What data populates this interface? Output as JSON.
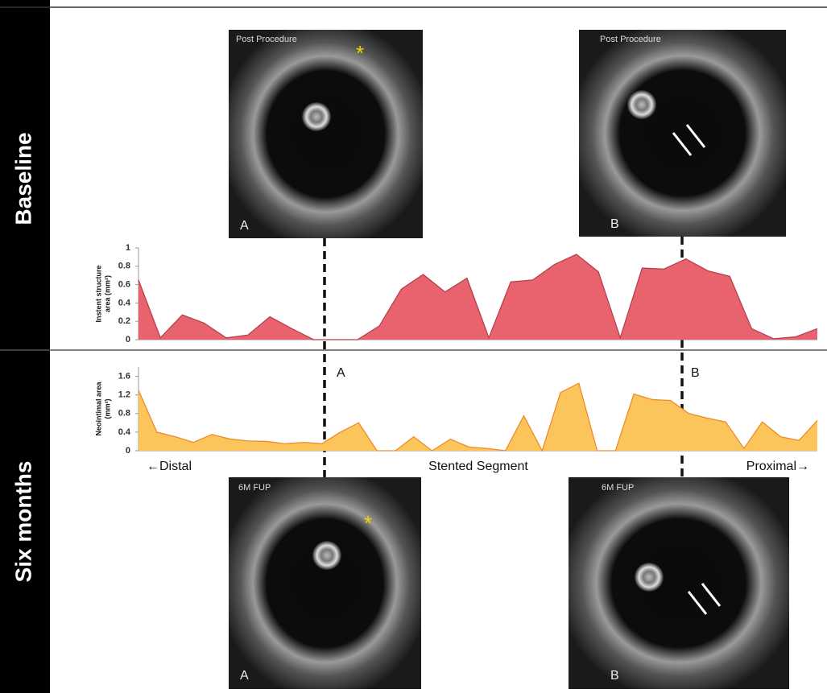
{
  "sections": [
    "Baseline",
    "Six months"
  ],
  "images": [
    {
      "caption": "Post Procedure",
      "letter": "A",
      "marker": "*"
    },
    {
      "caption": "Post Procedure",
      "letter": "B"
    },
    {
      "caption": "6M FUP",
      "letter": "A",
      "marker": "*"
    },
    {
      "caption": "6M FUP",
      "letter": "B"
    }
  ],
  "cut_labels": [
    "A",
    "B"
  ],
  "chart_data": [
    {
      "type": "area",
      "ylabel": [
        "Instent structure",
        "area (mm²)"
      ],
      "color": "#e8636d",
      "edge": "#b5404c",
      "values": [
        0.65,
        0.02,
        0.27,
        0.18,
        0.02,
        0.05,
        0.25,
        0.12,
        0,
        0,
        0,
        0.15,
        0.55,
        0.71,
        0.52,
        0.67,
        0.02,
        0.63,
        0.65,
        0.82,
        0.93,
        0.74,
        0.02,
        0.78,
        0.77,
        0.88,
        0.75,
        0.69,
        0.12,
        0.01,
        0.03,
        0.12
      ],
      "ylim": [
        0,
        1
      ],
      "yticks": [
        0,
        0.2,
        0.4,
        0.6,
        0.8,
        1
      ]
    },
    {
      "type": "area",
      "ylabel": [
        "Neointimal area",
        "(mm²)"
      ],
      "color": "#fbc55c",
      "edge": "#ef8a2a",
      "values": [
        1.3,
        0.4,
        0.3,
        0.18,
        0.35,
        0.25,
        0.21,
        0.2,
        0.15,
        0.18,
        0.15,
        0.4,
        0.6,
        0,
        0,
        0.3,
        0,
        0.25,
        0.08,
        0.05,
        0,
        0.75,
        0,
        1.25,
        1.45,
        0,
        0,
        1.22,
        1.1,
        1.08,
        0.8,
        0.7,
        0.62,
        0.05,
        0.62,
        0.3,
        0.22,
        0.65
      ],
      "ylim": [
        0,
        1.8
      ],
      "yticks": [
        0,
        0.4,
        0.8,
        1.2,
        1.6
      ],
      "xlabels": [
        "←Distal",
        "Stented Segment",
        "Proximal→"
      ]
    }
  ]
}
